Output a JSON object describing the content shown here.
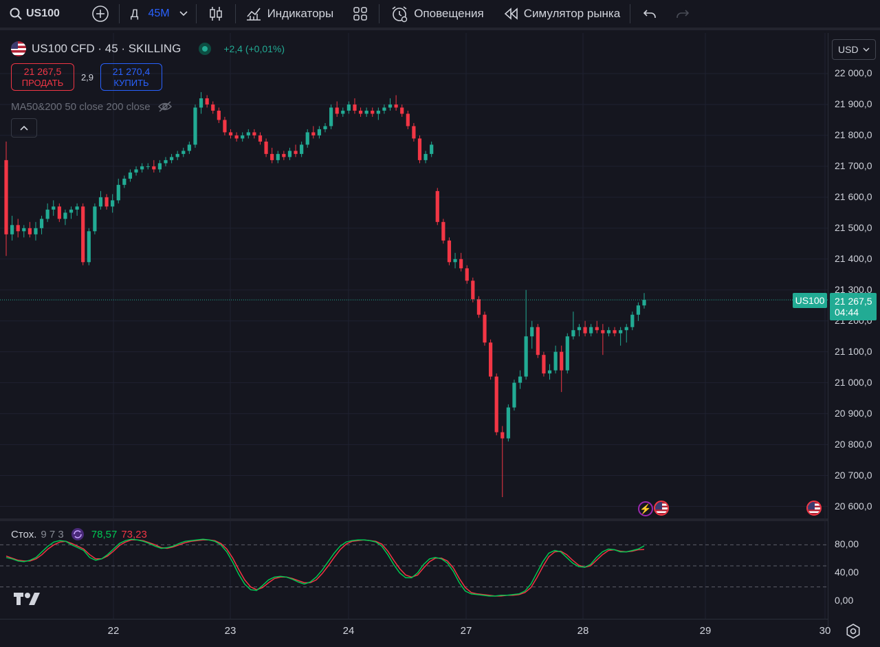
{
  "toolbar": {
    "symbol": "US100",
    "interval_prefix": "Д",
    "interval": "45M",
    "indicators": "Индикаторы",
    "alerts": "Оповещения",
    "replay": "Симулятор рынка"
  },
  "legend": {
    "title": "US100 CFD · 45 · SKILLING",
    "change": "+2,4 (+0,01%)",
    "sell_price": "21 267,5",
    "sell_label": "ПРОДАТЬ",
    "spread": "2,9",
    "buy_price": "21 270,4",
    "buy_label": "КУПИТЬ",
    "ma": "MA50&200 50 close 200 close"
  },
  "currency": "USD",
  "price_axis": {
    "ticks": [
      "22 000,0",
      "21 900,0",
      "21 800,0",
      "21 700,0",
      "21 600,0",
      "21 500,0",
      "21 400,0",
      "21 300,0",
      "21 200,0",
      "21 100,0",
      "21 000,0",
      "20 900,0",
      "20 800,0",
      "20 700,0",
      "20 600,0"
    ],
    "last_symbol": "US100",
    "last_price": "21 267,5",
    "countdown": "04:44"
  },
  "stoch": {
    "name": "Стох.",
    "params": "9 7 3",
    "k_value": "78,57",
    "d_value": "73,23",
    "ticks": [
      "80,00",
      "40,00",
      "0,00"
    ],
    "colors": {
      "k": "#00c853",
      "d": "#f23645"
    }
  },
  "time_axis": {
    "dates": [
      "22",
      "23",
      "24",
      "27",
      "28",
      "29",
      "30"
    ]
  },
  "colors": {
    "up": "#22ab94",
    "down": "#f23645",
    "accent": "#2962ff"
  },
  "chart_data": {
    "type": "candlestick",
    "symbol": "US100",
    "ylim": [
      20570,
      22020
    ],
    "candles": [
      [
        21720,
        21780,
        21410,
        21480
      ],
      [
        21480,
        21540,
        21460,
        21510
      ],
      [
        21510,
        21530,
        21470,
        21490
      ],
      [
        21490,
        21510,
        21470,
        21500
      ],
      [
        21500,
        21520,
        21470,
        21480
      ],
      [
        21480,
        21520,
        21460,
        21500
      ],
      [
        21500,
        21540,
        21480,
        21530
      ],
      [
        21530,
        21580,
        21520,
        21560
      ],
      [
        21560,
        21590,
        21540,
        21570
      ],
      [
        21570,
        21580,
        21520,
        21530
      ],
      [
        21530,
        21560,
        21510,
        21550
      ],
      [
        21550,
        21570,
        21530,
        21560
      ],
      [
        21560,
        21580,
        21540,
        21570
      ],
      [
        21570,
        21580,
        21380,
        21390
      ],
      [
        21390,
        21500,
        21380,
        21490
      ],
      [
        21490,
        21580,
        21480,
        21570
      ],
      [
        21570,
        21620,
        21560,
        21600
      ],
      [
        21600,
        21610,
        21560,
        21570
      ],
      [
        21570,
        21610,
        21550,
        21590
      ],
      [
        21590,
        21660,
        21580,
        21640
      ],
      [
        21640,
        21670,
        21630,
        21660
      ],
      [
        21660,
        21690,
        21650,
        21680
      ],
      [
        21680,
        21700,
        21670,
        21690
      ],
      [
        21690,
        21710,
        21680,
        21700
      ],
      [
        21700,
        21710,
        21690,
        21700
      ],
      [
        21700,
        21720,
        21680,
        21690
      ],
      [
        21690,
        21720,
        21680,
        21710
      ],
      [
        21710,
        21730,
        21700,
        21720
      ],
      [
        21720,
        21740,
        21710,
        21730
      ],
      [
        21730,
        21750,
        21720,
        21740
      ],
      [
        21740,
        21760,
        21730,
        21750
      ],
      [
        21750,
        21780,
        21740,
        21770
      ],
      [
        21770,
        21900,
        21760,
        21890
      ],
      [
        21890,
        21940,
        21870,
        21920
      ],
      [
        21920,
        21930,
        21890,
        21900
      ],
      [
        21900,
        21910,
        21870,
        21880
      ],
      [
        21880,
        21890,
        21840,
        21850
      ],
      [
        21850,
        21860,
        21800,
        21810
      ],
      [
        21810,
        21820,
        21790,
        21800
      ],
      [
        21800,
        21810,
        21780,
        21790
      ],
      [
        21790,
        21810,
        21780,
        21800
      ],
      [
        21800,
        21820,
        21790,
        21810
      ],
      [
        21810,
        21820,
        21790,
        21800
      ],
      [
        21800,
        21810,
        21770,
        21780
      ],
      [
        21780,
        21790,
        21730,
        21740
      ],
      [
        21740,
        21760,
        21710,
        21720
      ],
      [
        21720,
        21750,
        21710,
        21740
      ],
      [
        21740,
        21750,
        21720,
        21730
      ],
      [
        21730,
        21760,
        21720,
        21750
      ],
      [
        21750,
        21770,
        21730,
        21740
      ],
      [
        21740,
        21780,
        21730,
        21770
      ],
      [
        21770,
        21820,
        21760,
        21810
      ],
      [
        21810,
        21830,
        21790,
        21800
      ],
      [
        21800,
        21830,
        21790,
        21820
      ],
      [
        21820,
        21840,
        21810,
        21830
      ],
      [
        21830,
        21900,
        21820,
        21890
      ],
      [
        21890,
        21910,
        21860,
        21870
      ],
      [
        21870,
        21890,
        21860,
        21880
      ],
      [
        21880,
        21910,
        21870,
        21900
      ],
      [
        21900,
        21920,
        21870,
        21880
      ],
      [
        21880,
        21890,
        21860,
        21870
      ],
      [
        21870,
        21890,
        21860,
        21880
      ],
      [
        21880,
        21890,
        21860,
        21870
      ],
      [
        21870,
        21890,
        21850,
        21880
      ],
      [
        21880,
        21900,
        21870,
        21890
      ],
      [
        21890,
        21920,
        21880,
        21900
      ],
      [
        21900,
        21930,
        21880,
        21890
      ],
      [
        21890,
        21900,
        21860,
        21870
      ],
      [
        21870,
        21880,
        21820,
        21830
      ],
      [
        21830,
        21840,
        21780,
        21790
      ],
      [
        21790,
        21800,
        21710,
        21720
      ],
      [
        21720,
        21750,
        21710,
        21740
      ],
      [
        21740,
        21780,
        21730,
        21770
      ],
      [
        21620,
        21630,
        21510,
        21520
      ],
      [
        21520,
        21530,
        21450,
        21460
      ],
      [
        21460,
        21470,
        21380,
        21390
      ],
      [
        21390,
        21420,
        21370,
        21400
      ],
      [
        21400,
        21420,
        21360,
        21370
      ],
      [
        21370,
        21380,
        21320,
        21330
      ],
      [
        21330,
        21340,
        21260,
        21270
      ],
      [
        21270,
        21280,
        21210,
        21220
      ],
      [
        21220,
        21230,
        21120,
        21130
      ],
      [
        21130,
        21140,
        21010,
        21020
      ],
      [
        21020,
        21030,
        20830,
        20840
      ],
      [
        20840,
        20860,
        20630,
        20820
      ],
      [
        20820,
        20930,
        20810,
        20920
      ],
      [
        20920,
        21010,
        20910,
        21000
      ],
      [
        21000,
        21040,
        20980,
        21020
      ],
      [
        21020,
        21300,
        21010,
        21150
      ],
      [
        21150,
        21200,
        21110,
        21180
      ],
      [
        21180,
        21190,
        21080,
        21090
      ],
      [
        21090,
        21100,
        21020,
        21030
      ],
      [
        21030,
        21060,
        21010,
        21040
      ],
      [
        21040,
        21120,
        21030,
        21100
      ],
      [
        21100,
        21120,
        20970,
        21040
      ],
      [
        21040,
        21160,
        21030,
        21150
      ],
      [
        21150,
        21230,
        21140,
        21170
      ],
      [
        21170,
        21190,
        21150,
        21180
      ],
      [
        21180,
        21200,
        21150,
        21160
      ],
      [
        21160,
        21190,
        21150,
        21180
      ],
      [
        21180,
        21200,
        21160,
        21170
      ],
      [
        21170,
        21190,
        21090,
        21160
      ],
      [
        21160,
        21180,
        21150,
        21170
      ],
      [
        21170,
        21180,
        21150,
        21160
      ],
      [
        21160,
        21180,
        21120,
        21170
      ],
      [
        21170,
        21190,
        21130,
        21180
      ],
      [
        21180,
        21230,
        21170,
        21220
      ],
      [
        21220,
        21260,
        21200,
        21250
      ],
      [
        21250,
        21290,
        21240,
        21268
      ]
    ],
    "stoch_k": [
      62,
      60,
      57,
      56,
      58,
      62,
      70,
      78,
      84,
      86,
      85,
      80,
      76,
      72,
      62,
      58,
      60,
      66,
      74,
      82,
      86,
      88,
      87,
      85,
      82,
      78,
      75,
      76,
      78,
      82,
      85,
      86,
      87,
      88,
      87,
      85,
      80,
      70,
      55,
      38,
      24,
      16,
      15,
      22,
      30,
      34,
      35,
      34,
      31,
      27,
      24,
      27,
      34,
      44,
      56,
      68,
      78,
      84,
      86,
      87,
      87,
      86,
      84,
      78,
      66,
      52,
      40,
      33,
      33,
      40,
      52,
      60,
      62,
      60,
      54,
      42,
      26,
      14,
      10,
      9,
      8,
      7,
      7,
      8,
      8,
      9,
      10,
      14,
      24,
      40,
      56,
      68,
      72,
      70,
      62,
      54,
      49,
      48,
      52,
      62,
      70,
      74,
      73,
      70,
      70,
      72,
      74,
      78.57
    ],
    "stoch_d": [
      64,
      61,
      58,
      57,
      57,
      60,
      66,
      74,
      80,
      84,
      85,
      82,
      78,
      74,
      66,
      60,
      60,
      64,
      71,
      79,
      84,
      87,
      87,
      86,
      83,
      80,
      76,
      75,
      77,
      80,
      83,
      85,
      86,
      87,
      87,
      86,
      82,
      74,
      61,
      45,
      30,
      20,
      16,
      19,
      26,
      32,
      34,
      34,
      32,
      29,
      26,
      26,
      30,
      39,
      50,
      62,
      73,
      81,
      85,
      86,
      87,
      86,
      85,
      81,
      71,
      58,
      46,
      37,
      34,
      37,
      47,
      56,
      61,
      61,
      57,
      47,
      32,
      19,
      12,
      10,
      9,
      8,
      7,
      7,
      8,
      8,
      9,
      12,
      19,
      33,
      49,
      63,
      70,
      71,
      66,
      58,
      51,
      48,
      50,
      58,
      66,
      72,
      73,
      71,
      70,
      71,
      73,
      73.23
    ]
  }
}
